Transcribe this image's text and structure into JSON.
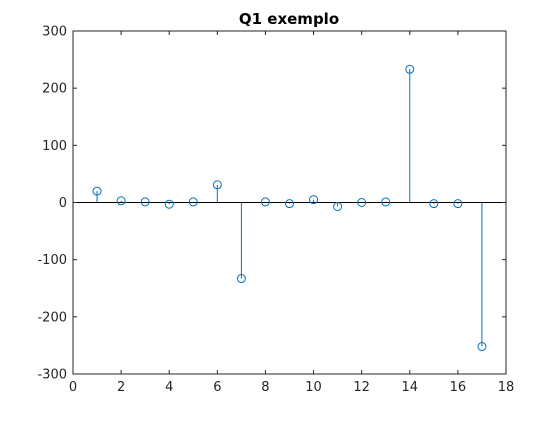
{
  "chart_data": {
    "type": "stem",
    "title": "Q1 exemplo",
    "xlabel": "",
    "ylabel": "",
    "xlim": [
      0,
      18
    ],
    "ylim": [
      -300,
      300
    ],
    "xticks": [
      0,
      2,
      4,
      6,
      8,
      10,
      12,
      14,
      16,
      18
    ],
    "yticks": [
      -300,
      -200,
      -100,
      0,
      100,
      200,
      300
    ],
    "xtick_labels": [
      "0",
      "2",
      "4",
      "6",
      "8",
      "10",
      "12",
      "14",
      "16",
      "18"
    ],
    "ytick_labels": [
      "-300",
      "-200",
      "-100",
      "0",
      "100",
      "200",
      "300"
    ],
    "grid": false,
    "marker": "circle",
    "series": [
      {
        "name": "stem",
        "color": "#0072BD",
        "x": [
          1,
          2,
          3,
          4,
          5,
          6,
          7,
          8,
          9,
          10,
          11,
          12,
          13,
          14,
          15,
          16,
          17
        ],
        "values": [
          20,
          3,
          1,
          -3,
          1,
          31,
          -133,
          1,
          -2,
          5,
          -7,
          0,
          1,
          233,
          -2,
          -2,
          -252
        ]
      }
    ]
  }
}
